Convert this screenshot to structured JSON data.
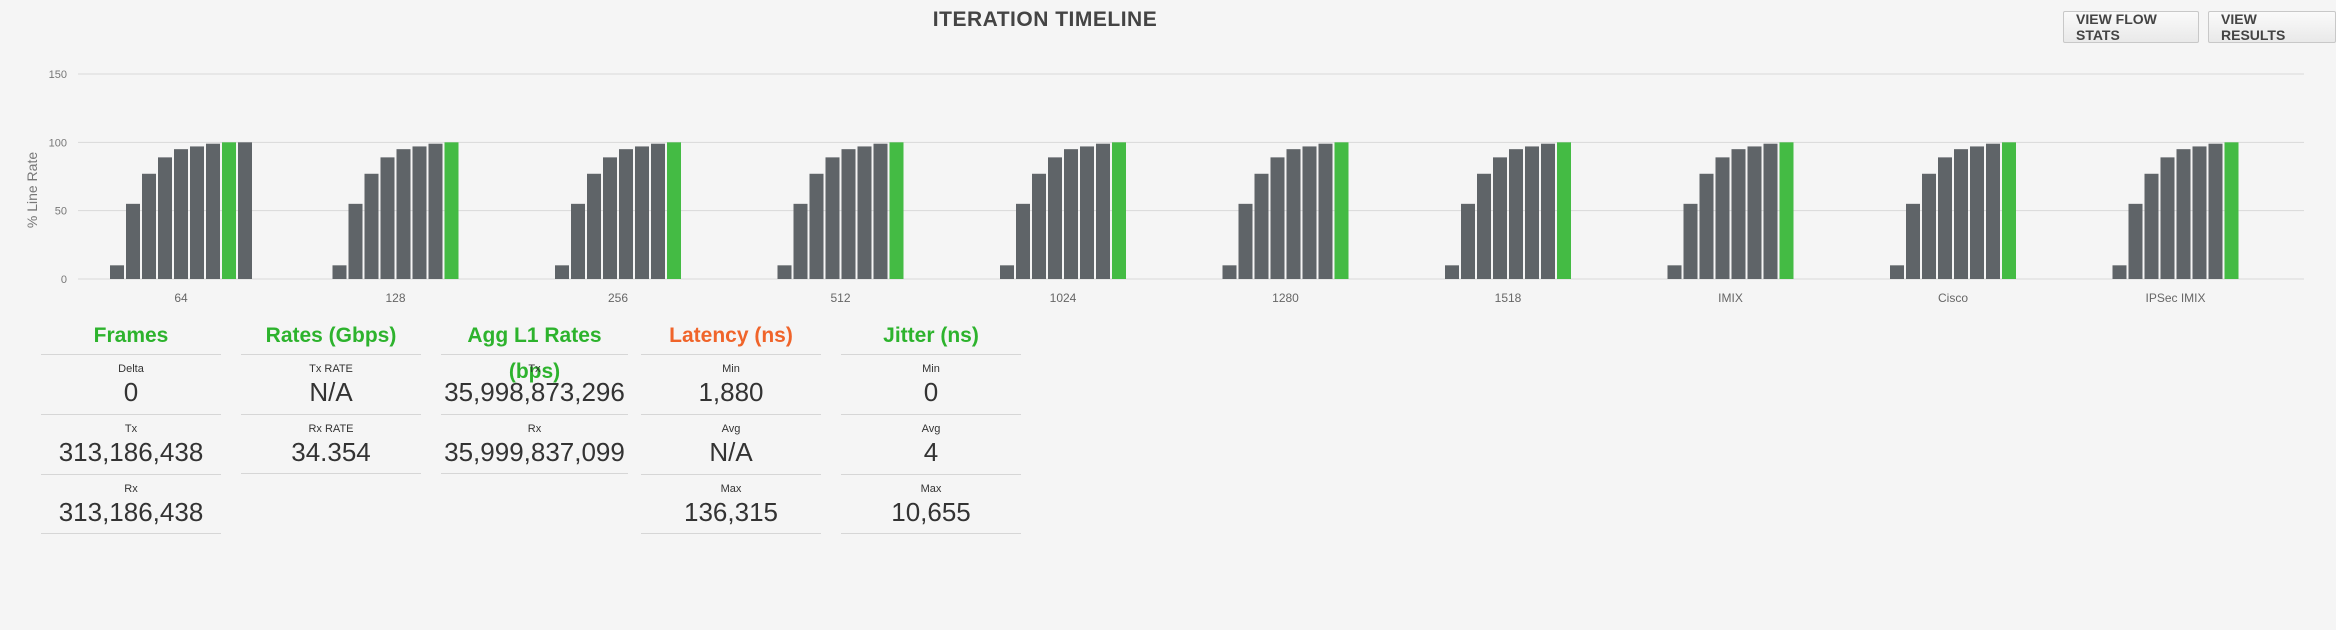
{
  "header": {
    "title": "ITERATION TIMELINE",
    "view_flow_stats": "VIEW FLOW STATS",
    "view_results": "VIEW RESULTS"
  },
  "colors": {
    "bar": "#5f6468",
    "bar_highlight": "#44bb44",
    "grid": "#d9d9d9",
    "frames": "#2db32d",
    "latency": "#f0642a"
  },
  "chart_data": {
    "type": "bar",
    "ylabel": "% Line Rate",
    "ylim": [
      0,
      150
    ],
    "yticks": [
      0,
      50,
      100,
      150
    ],
    "grid": true,
    "categories": [
      "64",
      "128",
      "256",
      "512",
      "1024",
      "1280",
      "1518",
      "IMIX",
      "Cisco",
      "IPSec IMIX"
    ],
    "groups": [
      {
        "values": [
          10,
          55,
          77,
          89,
          95,
          97,
          99,
          100,
          100
        ],
        "highlight_index": 7
      },
      {
        "values": [
          10,
          55,
          77,
          89,
          95,
          97,
          99,
          100
        ],
        "highlight_index": 7
      },
      {
        "values": [
          10,
          55,
          77,
          89,
          95,
          97,
          99,
          100
        ],
        "highlight_index": 7
      },
      {
        "values": [
          10,
          55,
          77,
          89,
          95,
          97,
          99,
          100
        ],
        "highlight_index": 7
      },
      {
        "values": [
          10,
          55,
          77,
          89,
          95,
          97,
          99,
          100
        ],
        "highlight_index": 7
      },
      {
        "values": [
          10,
          55,
          77,
          89,
          95,
          97,
          99,
          100
        ],
        "highlight_index": 7
      },
      {
        "values": [
          10,
          55,
          77,
          89,
          95,
          97,
          99,
          100
        ],
        "highlight_index": 7
      },
      {
        "values": [
          10,
          55,
          77,
          89,
          95,
          97,
          99,
          100
        ],
        "highlight_index": 7
      },
      {
        "values": [
          10,
          55,
          77,
          89,
          95,
          97,
          99,
          100
        ],
        "highlight_index": 7
      },
      {
        "values": [
          10,
          55,
          77,
          89,
          95,
          97,
          99,
          100
        ],
        "highlight_index": 7
      }
    ]
  },
  "stats": {
    "frames": {
      "title": "Frames",
      "rows": [
        {
          "label": "Delta",
          "value": "0"
        },
        {
          "label": "Tx",
          "value": "313,186,438"
        },
        {
          "label": "Rx",
          "value": "313,186,438"
        }
      ]
    },
    "rates": {
      "title": "Rates (Gbps)",
      "rows": [
        {
          "label": "Tx RATE",
          "value": "N/A"
        },
        {
          "label": "Rx RATE",
          "value": "34.354"
        }
      ]
    },
    "agg": {
      "title": "Agg L1 Rates (bps)",
      "rows": [
        {
          "label": "Tx",
          "value": "35,998,873,296"
        },
        {
          "label": "Rx",
          "value": "35,999,837,099"
        }
      ]
    },
    "latency": {
      "title": "Latency (ns)",
      "rows": [
        {
          "label": "Min",
          "value": "1,880"
        },
        {
          "label": "Avg",
          "value": "N/A"
        },
        {
          "label": "Max",
          "value": "136,315"
        }
      ]
    },
    "jitter": {
      "title": "Jitter (ns)",
      "rows": [
        {
          "label": "Min",
          "value": "0"
        },
        {
          "label": "Avg",
          "value": "4"
        },
        {
          "label": "Max",
          "value": "10,655"
        }
      ]
    }
  }
}
